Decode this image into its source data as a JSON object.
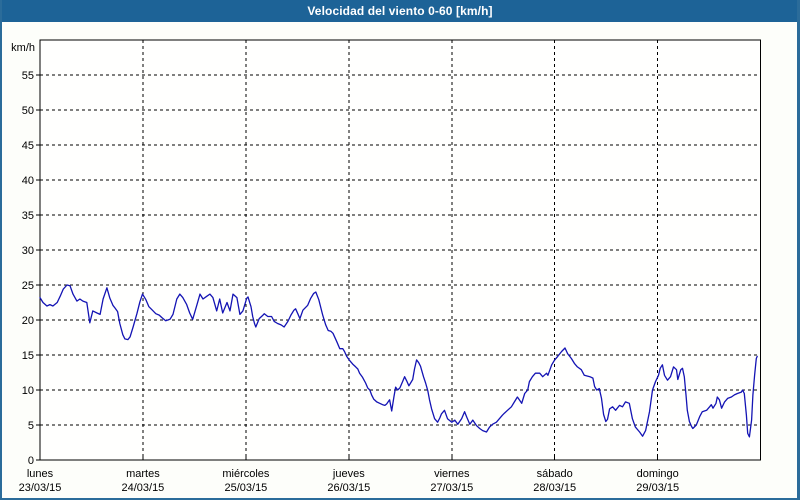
{
  "window": {
    "title": "Velocidad del viento 0-60 [km/h]"
  },
  "colors": {
    "title_bar_bg": "#1d6397",
    "title_text": "#ffffff",
    "frame_border": "#2b6c9a",
    "page_bg": "#fdfefa",
    "plot_bg": "#fffffe",
    "grid": "#000000",
    "axis": "#000000",
    "label_text": "#000000",
    "line": "#1414b4"
  },
  "chart_data": {
    "type": "line",
    "title": "Velocidad del viento 0-60 [km/h]",
    "ylabel": "km/h",
    "xlabel": "",
    "ylim": [
      0,
      60
    ],
    "y_ticks": [
      0,
      5,
      10,
      15,
      20,
      25,
      30,
      35,
      40,
      45,
      50,
      55
    ],
    "grid": "dashed",
    "legend": "none",
    "x_axis": {
      "unit": "hours_from_monday_00h",
      "range_hours": [
        0,
        168
      ],
      "days": [
        {
          "name": "lunes",
          "date": "23/03/15"
        },
        {
          "name": "martes",
          "date": "24/03/15"
        },
        {
          "name": "miércoles",
          "date": "25/03/15"
        },
        {
          "name": "jueves",
          "date": "26/03/15"
        },
        {
          "name": "viernes",
          "date": "27/03/15"
        },
        {
          "name": "sábado",
          "date": "28/03/15"
        },
        {
          "name": "domingo",
          "date": "29/03/15"
        }
      ]
    },
    "series": [
      {
        "name": "Velocidad del viento [km/h]",
        "color": "#1414b4",
        "points": [
          [
            0,
            23.2
          ],
          [
            0.7,
            22.5
          ],
          [
            1.6,
            22
          ],
          [
            2.3,
            22.2
          ],
          [
            3,
            22
          ],
          [
            4,
            22.5
          ],
          [
            4.7,
            23.4
          ],
          [
            5.4,
            24.4
          ],
          [
            6.3,
            25
          ],
          [
            7,
            24.9
          ],
          [
            7.7,
            23.7
          ],
          [
            8.6,
            22.7
          ],
          [
            9.3,
            23
          ],
          [
            10,
            22.7
          ],
          [
            10.9,
            22.5
          ],
          [
            11.6,
            19.6
          ],
          [
            12.3,
            21.3
          ],
          [
            13.3,
            21
          ],
          [
            14,
            20.8
          ],
          [
            14.7,
            23
          ],
          [
            15.6,
            24.6
          ],
          [
            16.3,
            23.1
          ],
          [
            17,
            22.1
          ],
          [
            17.5,
            21.7
          ],
          [
            18.1,
            21.2
          ],
          [
            18.6,
            19.5
          ],
          [
            19.3,
            17.9
          ],
          [
            19.8,
            17.3
          ],
          [
            20.5,
            17.2
          ],
          [
            21,
            17.6
          ],
          [
            21.7,
            19
          ],
          [
            22.6,
            20.9
          ],
          [
            23.3,
            22.6
          ],
          [
            23.9,
            23.7
          ],
          [
            24.7,
            22.9
          ],
          [
            25.4,
            21.9
          ],
          [
            26.2,
            21.4
          ],
          [
            27,
            20.9
          ],
          [
            27.8,
            20.7
          ],
          [
            28.5,
            20.3
          ],
          [
            29.3,
            19.9
          ],
          [
            30.3,
            20.1
          ],
          [
            31,
            20.8
          ],
          [
            31.9,
            23
          ],
          [
            32.6,
            23.7
          ],
          [
            33.3,
            23.2
          ],
          [
            34.2,
            22.2
          ],
          [
            34.9,
            21
          ],
          [
            35.6,
            20.1
          ],
          [
            36.6,
            22.2
          ],
          [
            37.3,
            23.7
          ],
          [
            38,
            23
          ],
          [
            38.9,
            23.4
          ],
          [
            39.6,
            23.7
          ],
          [
            40.3,
            23.2
          ],
          [
            41.2,
            21.3
          ],
          [
            41.9,
            23
          ],
          [
            42.6,
            21
          ],
          [
            43.6,
            22.5
          ],
          [
            44.3,
            21.3
          ],
          [
            45,
            23.7
          ],
          [
            45.9,
            23.2
          ],
          [
            46.6,
            20.8
          ],
          [
            47.3,
            21.3
          ],
          [
            48.2,
            23.1
          ],
          [
            48.5,
            23.3
          ],
          [
            49.2,
            21.9
          ],
          [
            49.6,
            20.5
          ],
          [
            50,
            19.5
          ],
          [
            50.3,
            19
          ],
          [
            51.1,
            20.2
          ],
          [
            52,
            20.7
          ],
          [
            52.3,
            20.9
          ],
          [
            53.1,
            20.5
          ],
          [
            54,
            20.5
          ],
          [
            54.6,
            19.8
          ],
          [
            55.4,
            19.5
          ],
          [
            56.2,
            19.3
          ],
          [
            56.9,
            19
          ],
          [
            57.8,
            19.8
          ],
          [
            58.5,
            20.7
          ],
          [
            59.2,
            21.4
          ],
          [
            59.6,
            21.6
          ],
          [
            60.1,
            20.9
          ],
          [
            60.6,
            20.2
          ],
          [
            61.3,
            21.4
          ],
          [
            62.4,
            22.1
          ],
          [
            63.1,
            23.1
          ],
          [
            63.8,
            23.8
          ],
          [
            64.3,
            24
          ],
          [
            65,
            22.9
          ],
          [
            65.9,
            20.7
          ],
          [
            66.6,
            19.3
          ],
          [
            67.2,
            18.5
          ],
          [
            67.8,
            18.4
          ],
          [
            68.3,
            18.1
          ],
          [
            69.2,
            16.9
          ],
          [
            69.9,
            15.9
          ],
          [
            70.6,
            15.9
          ],
          [
            71,
            15.5
          ],
          [
            71.5,
            14.8
          ],
          [
            72.2,
            14.2
          ],
          [
            72.9,
            13.7
          ],
          [
            73.6,
            13.3
          ],
          [
            74.1,
            13
          ],
          [
            74.5,
            12.4
          ],
          [
            75.2,
            11.8
          ],
          [
            75.9,
            11
          ],
          [
            76.4,
            10.3
          ],
          [
            76.9,
            10
          ],
          [
            77.3,
            9.3
          ],
          [
            77.8,
            8.7
          ],
          [
            78.5,
            8.3
          ],
          [
            79.2,
            8.1
          ],
          [
            79.9,
            7.9
          ],
          [
            80.4,
            7.8
          ],
          [
            80.8,
            8
          ],
          [
            81.5,
            8.6
          ],
          [
            82,
            7
          ],
          [
            82.5,
            9
          ],
          [
            82.9,
            10.4
          ],
          [
            83.4,
            10
          ],
          [
            83.9,
            10.3
          ],
          [
            84.6,
            11.3
          ],
          [
            85,
            11.9
          ],
          [
            85.5,
            11.3
          ],
          [
            86,
            10.6
          ],
          [
            86.4,
            11
          ],
          [
            86.9,
            11.5
          ],
          [
            87.3,
            13
          ],
          [
            87.8,
            14.3
          ],
          [
            88.3,
            13.9
          ],
          [
            88.7,
            13.4
          ],
          [
            89.4,
            11.9
          ],
          [
            89.9,
            11
          ],
          [
            90.4,
            9.9
          ],
          [
            90.8,
            8.6
          ],
          [
            91.3,
            7.3
          ],
          [
            92,
            5.9
          ],
          [
            92.7,
            5.4
          ],
          [
            93.2,
            6
          ],
          [
            93.6,
            6.6
          ],
          [
            94.3,
            7.1
          ],
          [
            95,
            5.9
          ],
          [
            96,
            5.4
          ],
          [
            96.7,
            5.7
          ],
          [
            97.4,
            5.1
          ],
          [
            98.3,
            5.9
          ],
          [
            99,
            6.9
          ],
          [
            99.5,
            6.1
          ],
          [
            100.2,
            5.1
          ],
          [
            100.9,
            5.7
          ],
          [
            101.8,
            4.9
          ],
          [
            102.5,
            4.5
          ],
          [
            103.2,
            4.2
          ],
          [
            104.1,
            4
          ],
          [
            104.8,
            4.7
          ],
          [
            105.5,
            5.1
          ],
          [
            106.4,
            5.4
          ],
          [
            107.1,
            5.9
          ],
          [
            107.8,
            6.4
          ],
          [
            108.3,
            6.7
          ],
          [
            109,
            7.1
          ],
          [
            109.9,
            7.6
          ],
          [
            110.6,
            8.3
          ],
          [
            111.3,
            9
          ],
          [
            112.3,
            8.1
          ],
          [
            113,
            9.5
          ],
          [
            113.7,
            10
          ],
          [
            114.1,
            11.2
          ],
          [
            114.8,
            11.9
          ],
          [
            115.5,
            12.4
          ],
          [
            116.5,
            12.4
          ],
          [
            117.2,
            11.9
          ],
          [
            118.1,
            12.4
          ],
          [
            118.4,
            12.1
          ],
          [
            119.3,
            13.6
          ],
          [
            120,
            14.3
          ],
          [
            120.7,
            14.8
          ],
          [
            121.6,
            15.5
          ],
          [
            122.4,
            16
          ],
          [
            123,
            15.2
          ],
          [
            123.9,
            14.5
          ],
          [
            124.6,
            13.8
          ],
          [
            125.3,
            13.3
          ],
          [
            126.2,
            12.9
          ],
          [
            126.9,
            12.1
          ],
          [
            128.2,
            11.9
          ],
          [
            128.9,
            11.7
          ],
          [
            129.3,
            10.5
          ],
          [
            129.8,
            10
          ],
          [
            130.4,
            10.2
          ],
          [
            130.9,
            8.8
          ],
          [
            131.4,
            6.5
          ],
          [
            131.9,
            5.5
          ],
          [
            132.3,
            5.8
          ],
          [
            132.8,
            7.3
          ],
          [
            133.5,
            7.6
          ],
          [
            134.2,
            7.1
          ],
          [
            135.1,
            7.8
          ],
          [
            135.8,
            7.6
          ],
          [
            136.5,
            8.3
          ],
          [
            137.4,
            8.1
          ],
          [
            138.1,
            5.9
          ],
          [
            138.8,
            4.7
          ],
          [
            139.8,
            4
          ],
          [
            140.5,
            3.4
          ],
          [
            141.2,
            4.2
          ],
          [
            142.1,
            6.9
          ],
          [
            142.8,
            10
          ],
          [
            143.5,
            11.2
          ],
          [
            144.2,
            12.1
          ],
          [
            144.6,
            13.1
          ],
          [
            145.1,
            13.6
          ],
          [
            145.6,
            12.1
          ],
          [
            146.3,
            11.4
          ],
          [
            147,
            11.9
          ],
          [
            147.7,
            13.3
          ],
          [
            148.4,
            12.9
          ],
          [
            148.7,
            11.5
          ],
          [
            149.4,
            12.9
          ],
          [
            149.8,
            13.1
          ],
          [
            150.2,
            11.9
          ],
          [
            150.6,
            9.3
          ],
          [
            150.9,
            7.1
          ],
          [
            151.4,
            5.5
          ],
          [
            151.9,
            4.8
          ],
          [
            152.2,
            4.5
          ],
          [
            153,
            5
          ],
          [
            153.8,
            6.2
          ],
          [
            154.4,
            6.9
          ],
          [
            155.4,
            7.1
          ],
          [
            156.1,
            7.6
          ],
          [
            156.5,
            7.9
          ],
          [
            156.9,
            7.4
          ],
          [
            157.6,
            8.1
          ],
          [
            157.9,
            9
          ],
          [
            158.4,
            8.6
          ],
          [
            158.9,
            7.4
          ],
          [
            159.6,
            8.3
          ],
          [
            160.3,
            8.8
          ],
          [
            161.2,
            9
          ],
          [
            161.9,
            9.3
          ],
          [
            162.6,
            9.5
          ],
          [
            163.5,
            9.7
          ],
          [
            163.8,
            10
          ],
          [
            164.2,
            9.5
          ],
          [
            164.7,
            6.4
          ],
          [
            165,
            3.8
          ],
          [
            165.4,
            3.3
          ],
          [
            165.9,
            5.7
          ],
          [
            166.2,
            9.3
          ],
          [
            166.6,
            12.1
          ],
          [
            167,
            14.5
          ],
          [
            167.2,
            14.8
          ]
        ]
      }
    ]
  }
}
